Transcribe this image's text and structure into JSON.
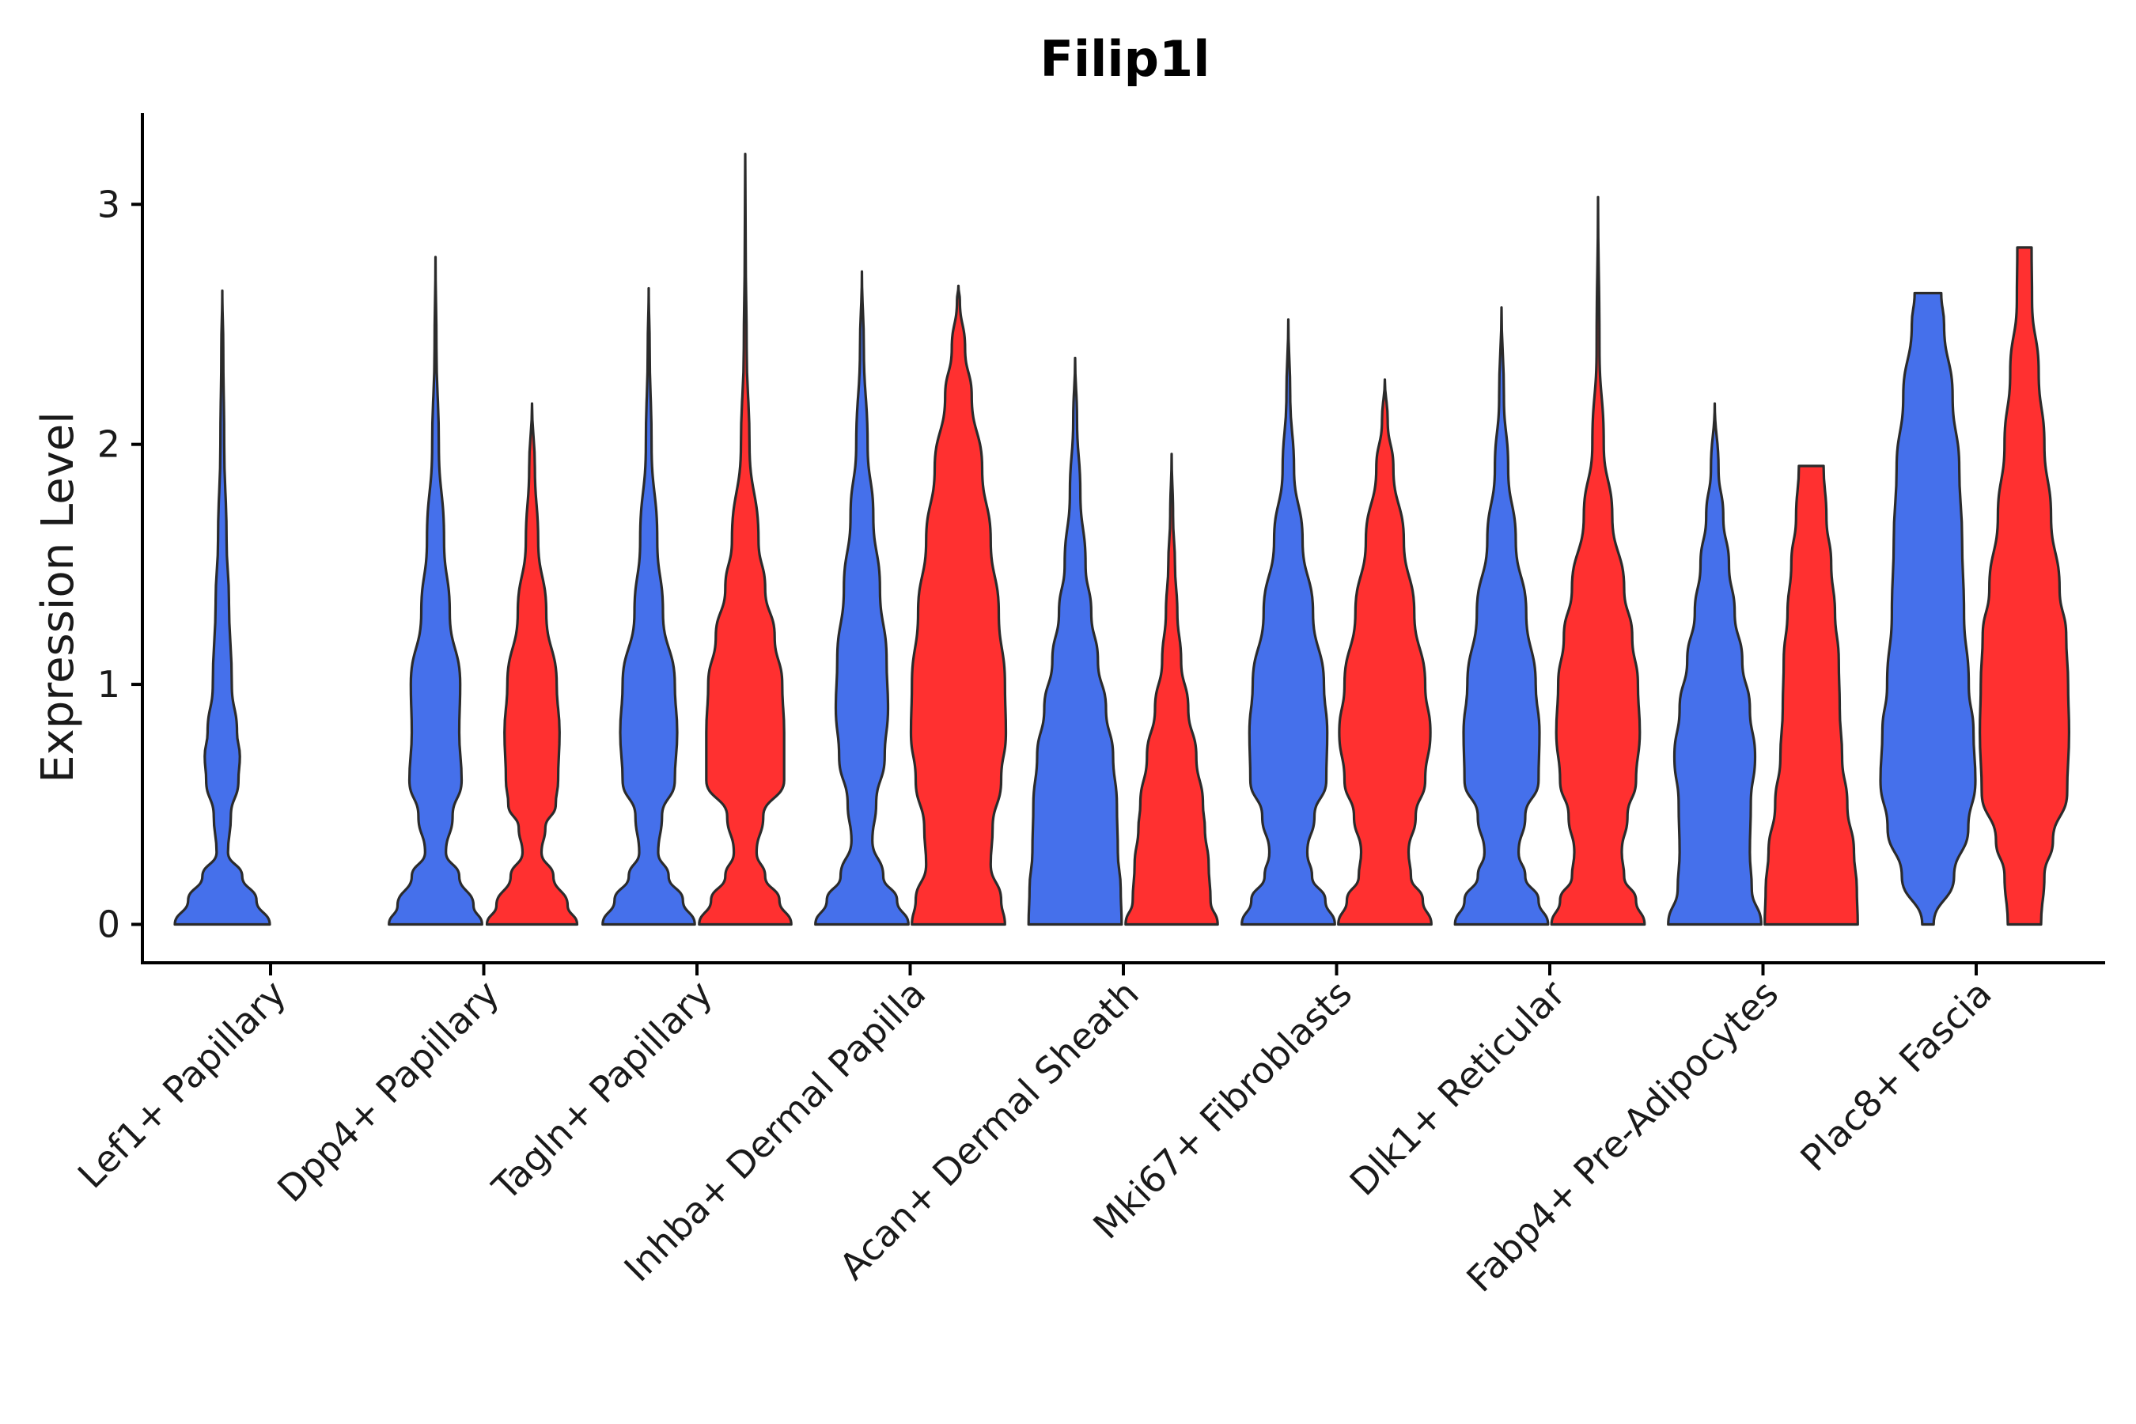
{
  "chart_data": {
    "type": "violin",
    "title": "Filip1l",
    "xlabel": "",
    "ylabel": "Expression Level",
    "ylim": [
      -0.16,
      3.38
    ],
    "yticks": [
      0,
      1,
      2,
      3
    ],
    "grid": false,
    "legend": "none",
    "colors": {
      "group_a": "#4570EB",
      "group_b": "#FF3030"
    },
    "categories": [
      "Lef1+ Papillary",
      "Dpp4+ Papillary",
      "Tagln+ Papillary",
      "Inhba+ Dermal Papilla",
      "Acan+ Dermal Sheath",
      "Mki67+ Fibroblasts",
      "Dlk1+ Reticular",
      "Fabp4+ Pre-Adipocytes",
      "Plac8+ Fascia"
    ],
    "violins": [
      {
        "category": 0,
        "group": "group_a",
        "max": 2.64,
        "profile": [
          [
            0.0,
            1.0
          ],
          [
            0.1,
            0.72
          ],
          [
            0.2,
            0.42
          ],
          [
            0.3,
            0.12
          ],
          [
            0.45,
            0.18
          ],
          [
            0.6,
            0.34
          ],
          [
            0.7,
            0.37
          ],
          [
            0.8,
            0.31
          ],
          [
            1.0,
            0.2
          ],
          [
            1.35,
            0.14
          ],
          [
            1.6,
            0.09
          ],
          [
            2.0,
            0.04
          ],
          [
            2.4,
            0.02
          ],
          [
            2.64,
            0.0
          ]
        ]
      },
      {
        "category": 1,
        "group": "group_a",
        "max": 2.78,
        "profile": [
          [
            0.0,
            0.98
          ],
          [
            0.08,
            0.8
          ],
          [
            0.2,
            0.5
          ],
          [
            0.3,
            0.22
          ],
          [
            0.45,
            0.36
          ],
          [
            0.6,
            0.55
          ],
          [
            0.8,
            0.5
          ],
          [
            1.0,
            0.52
          ],
          [
            1.3,
            0.3
          ],
          [
            1.6,
            0.18
          ],
          [
            2.0,
            0.07
          ],
          [
            2.4,
            0.02
          ],
          [
            2.78,
            0.0
          ]
        ]
      },
      {
        "category": 1,
        "group": "group_b",
        "max": 2.17,
        "profile": [
          [
            0.0,
            0.95
          ],
          [
            0.08,
            0.75
          ],
          [
            0.2,
            0.45
          ],
          [
            0.3,
            0.2
          ],
          [
            0.4,
            0.28
          ],
          [
            0.5,
            0.5
          ],
          [
            0.6,
            0.55
          ],
          [
            0.8,
            0.58
          ],
          [
            1.0,
            0.52
          ],
          [
            1.3,
            0.3
          ],
          [
            1.6,
            0.13
          ],
          [
            1.9,
            0.06
          ],
          [
            2.17,
            0.0
          ]
        ]
      },
      {
        "category": 2,
        "group": "group_a",
        "max": 2.65,
        "profile": [
          [
            0.0,
            0.97
          ],
          [
            0.1,
            0.72
          ],
          [
            0.2,
            0.42
          ],
          [
            0.3,
            0.2
          ],
          [
            0.45,
            0.28
          ],
          [
            0.6,
            0.55
          ],
          [
            0.8,
            0.6
          ],
          [
            1.0,
            0.55
          ],
          [
            1.3,
            0.3
          ],
          [
            1.6,
            0.18
          ],
          [
            2.0,
            0.06
          ],
          [
            2.4,
            0.02
          ],
          [
            2.65,
            0.0
          ]
        ]
      },
      {
        "category": 2,
        "group": "group_b",
        "max": 3.21,
        "profile": [
          [
            0.0,
            0.97
          ],
          [
            0.1,
            0.72
          ],
          [
            0.2,
            0.42
          ],
          [
            0.3,
            0.24
          ],
          [
            0.45,
            0.38
          ],
          [
            0.6,
            0.82
          ],
          [
            0.8,
            0.82
          ],
          [
            1.0,
            0.78
          ],
          [
            1.2,
            0.62
          ],
          [
            1.4,
            0.42
          ],
          [
            1.6,
            0.28
          ],
          [
            2.0,
            0.09
          ],
          [
            2.4,
            0.03
          ],
          [
            2.8,
            0.01
          ],
          [
            3.21,
            0.0
          ]
        ]
      },
      {
        "category": 3,
        "group": "group_a",
        "max": 2.72,
        "profile": [
          [
            0.0,
            0.98
          ],
          [
            0.1,
            0.74
          ],
          [
            0.2,
            0.45
          ],
          [
            0.35,
            0.22
          ],
          [
            0.5,
            0.3
          ],
          [
            0.7,
            0.48
          ],
          [
            0.9,
            0.55
          ],
          [
            1.1,
            0.52
          ],
          [
            1.4,
            0.38
          ],
          [
            1.7,
            0.24
          ],
          [
            2.0,
            0.12
          ],
          [
            2.4,
            0.04
          ],
          [
            2.72,
            0.0
          ]
        ]
      },
      {
        "category": 3,
        "group": "group_b",
        "max": 2.66,
        "profile": [
          [
            0.0,
            0.98
          ],
          [
            0.1,
            0.9
          ],
          [
            0.25,
            0.68
          ],
          [
            0.4,
            0.72
          ],
          [
            0.6,
            0.9
          ],
          [
            0.8,
            1.0
          ],
          [
            1.0,
            0.98
          ],
          [
            1.3,
            0.85
          ],
          [
            1.6,
            0.68
          ],
          [
            1.9,
            0.5
          ],
          [
            2.2,
            0.28
          ],
          [
            2.4,
            0.14
          ],
          [
            2.6,
            0.03
          ],
          [
            2.66,
            0.0
          ]
        ]
      },
      {
        "category": 4,
        "group": "group_a",
        "max": 2.36,
        "profile": [
          [
            0.0,
            0.98
          ],
          [
            0.15,
            0.96
          ],
          [
            0.3,
            0.9
          ],
          [
            0.5,
            0.88
          ],
          [
            0.7,
            0.8
          ],
          [
            0.9,
            0.65
          ],
          [
            1.1,
            0.48
          ],
          [
            1.3,
            0.34
          ],
          [
            1.5,
            0.22
          ],
          [
            1.8,
            0.11
          ],
          [
            2.1,
            0.04
          ],
          [
            2.36,
            0.0
          ]
        ]
      },
      {
        "category": 4,
        "group": "group_b",
        "max": 1.96,
        "profile": [
          [
            0.0,
            0.97
          ],
          [
            0.1,
            0.82
          ],
          [
            0.25,
            0.78
          ],
          [
            0.4,
            0.7
          ],
          [
            0.5,
            0.66
          ],
          [
            0.7,
            0.52
          ],
          [
            0.9,
            0.35
          ],
          [
            1.1,
            0.2
          ],
          [
            1.3,
            0.12
          ],
          [
            1.5,
            0.07
          ],
          [
            1.7,
            0.03
          ],
          [
            1.96,
            0.0
          ]
        ]
      },
      {
        "category": 5,
        "group": "group_a",
        "max": 2.52,
        "profile": [
          [
            0.0,
            0.98
          ],
          [
            0.1,
            0.78
          ],
          [
            0.2,
            0.5
          ],
          [
            0.3,
            0.4
          ],
          [
            0.45,
            0.55
          ],
          [
            0.6,
            0.8
          ],
          [
            0.8,
            0.82
          ],
          [
            1.0,
            0.75
          ],
          [
            1.3,
            0.52
          ],
          [
            1.6,
            0.3
          ],
          [
            1.9,
            0.12
          ],
          [
            2.2,
            0.04
          ],
          [
            2.52,
            0.0
          ]
        ]
      },
      {
        "category": 5,
        "group": "group_b",
        "max": 2.27,
        "profile": [
          [
            0.0,
            0.98
          ],
          [
            0.1,
            0.8
          ],
          [
            0.2,
            0.55
          ],
          [
            0.3,
            0.5
          ],
          [
            0.45,
            0.65
          ],
          [
            0.6,
            0.85
          ],
          [
            0.8,
            0.96
          ],
          [
            1.0,
            0.85
          ],
          [
            1.3,
            0.62
          ],
          [
            1.6,
            0.4
          ],
          [
            1.9,
            0.18
          ],
          [
            2.1,
            0.06
          ],
          [
            2.27,
            0.0
          ]
        ]
      },
      {
        "category": 6,
        "group": "group_a",
        "max": 2.57,
        "profile": [
          [
            0.0,
            0.98
          ],
          [
            0.1,
            0.78
          ],
          [
            0.2,
            0.5
          ],
          [
            0.3,
            0.36
          ],
          [
            0.45,
            0.5
          ],
          [
            0.6,
            0.78
          ],
          [
            0.8,
            0.8
          ],
          [
            1.0,
            0.72
          ],
          [
            1.3,
            0.52
          ],
          [
            1.6,
            0.3
          ],
          [
            1.9,
            0.14
          ],
          [
            2.2,
            0.05
          ],
          [
            2.57,
            0.0
          ]
        ]
      },
      {
        "category": 6,
        "group": "group_b",
        "max": 3.03,
        "profile": [
          [
            0.0,
            0.98
          ],
          [
            0.1,
            0.8
          ],
          [
            0.2,
            0.55
          ],
          [
            0.3,
            0.5
          ],
          [
            0.45,
            0.62
          ],
          [
            0.6,
            0.8
          ],
          [
            0.8,
            0.88
          ],
          [
            1.0,
            0.84
          ],
          [
            1.2,
            0.72
          ],
          [
            1.4,
            0.55
          ],
          [
            1.7,
            0.3
          ],
          [
            2.0,
            0.12
          ],
          [
            2.4,
            0.03
          ],
          [
            3.03,
            0.0
          ]
        ]
      },
      {
        "category": 7,
        "group": "group_a",
        "max": 2.17,
        "profile": [
          [
            0.0,
            0.98
          ],
          [
            0.15,
            0.78
          ],
          [
            0.3,
            0.74
          ],
          [
            0.5,
            0.76
          ],
          [
            0.7,
            0.85
          ],
          [
            0.9,
            0.74
          ],
          [
            1.1,
            0.58
          ],
          [
            1.3,
            0.42
          ],
          [
            1.5,
            0.3
          ],
          [
            1.7,
            0.18
          ],
          [
            1.9,
            0.08
          ],
          [
            2.17,
            0.0
          ]
        ]
      },
      {
        "category": 7,
        "group": "group_b",
        "max": 1.91,
        "profile": [
          [
            0.0,
            0.98
          ],
          [
            0.15,
            0.96
          ],
          [
            0.3,
            0.9
          ],
          [
            0.5,
            0.76
          ],
          [
            0.7,
            0.65
          ],
          [
            0.9,
            0.6
          ],
          [
            1.1,
            0.58
          ],
          [
            1.3,
            0.5
          ],
          [
            1.5,
            0.42
          ],
          [
            1.7,
            0.32
          ],
          [
            1.91,
            0.26
          ]
        ]
      },
      {
        "category": 8,
        "group": "group_a",
        "max": 2.63,
        "profile": [
          [
            0.0,
            0.12
          ],
          [
            0.2,
            0.55
          ],
          [
            0.4,
            0.85
          ],
          [
            0.6,
            1.0
          ],
          [
            0.8,
            0.96
          ],
          [
            1.0,
            0.86
          ],
          [
            1.3,
            0.76
          ],
          [
            1.6,
            0.72
          ],
          [
            1.9,
            0.66
          ],
          [
            2.2,
            0.52
          ],
          [
            2.5,
            0.34
          ],
          [
            2.63,
            0.28
          ]
        ]
      },
      {
        "category": 8,
        "group": "group_b",
        "max": 2.82,
        "profile": [
          [
            0.0,
            0.35
          ],
          [
            0.2,
            0.42
          ],
          [
            0.35,
            0.6
          ],
          [
            0.55,
            0.9
          ],
          [
            0.8,
            0.94
          ],
          [
            1.0,
            0.92
          ],
          [
            1.2,
            0.88
          ],
          [
            1.4,
            0.74
          ],
          [
            1.7,
            0.56
          ],
          [
            2.0,
            0.42
          ],
          [
            2.3,
            0.3
          ],
          [
            2.6,
            0.16
          ],
          [
            2.82,
            0.15
          ]
        ]
      }
    ]
  }
}
